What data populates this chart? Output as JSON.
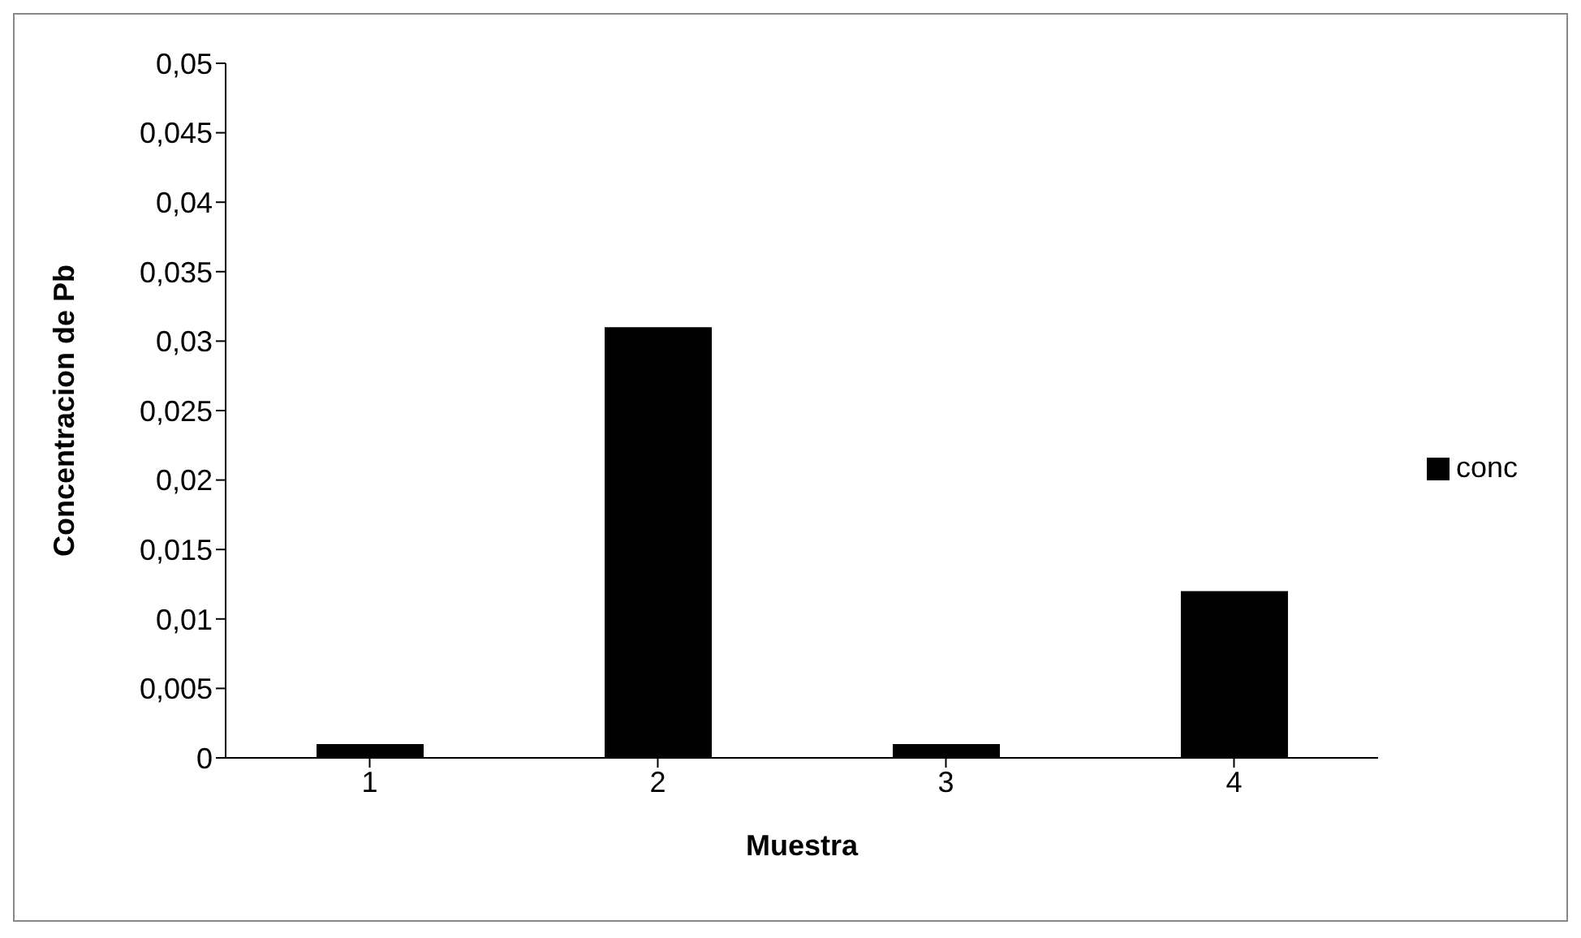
{
  "chart_data": {
    "type": "bar",
    "xlabel": "Muestra",
    "ylabel": "Concentracion de Pb",
    "categories": [
      "1",
      "2",
      "3",
      "4"
    ],
    "series": [
      {
        "name": "conc",
        "color": "#000000",
        "values": [
          0.001,
          0.031,
          0.001,
          0.012
        ]
      }
    ],
    "ylim": [
      0,
      0.05
    ],
    "yticks": [
      {
        "value": 0,
        "label": "0"
      },
      {
        "value": 0.005,
        "label": "0,005"
      },
      {
        "value": 0.01,
        "label": "0,01"
      },
      {
        "value": 0.015,
        "label": "0,015"
      },
      {
        "value": 0.02,
        "label": "0,02"
      },
      {
        "value": 0.025,
        "label": "0,025"
      },
      {
        "value": 0.03,
        "label": "0,03"
      },
      {
        "value": 0.035,
        "label": "0,035"
      },
      {
        "value": 0.04,
        "label": "0,04"
      },
      {
        "value": 0.045,
        "label": "0,045"
      },
      {
        "value": 0.05,
        "label": "0,05"
      }
    ],
    "grid": false,
    "legend": "right"
  }
}
